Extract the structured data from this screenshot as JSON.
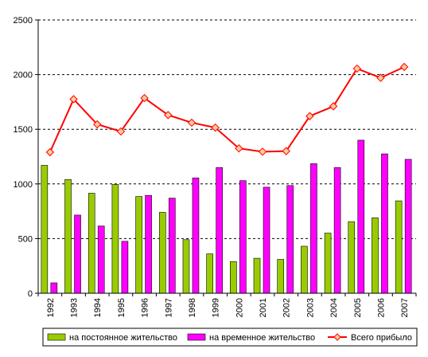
{
  "chart_data": {
    "type": "bar",
    "categories": [
      "1992",
      "1993",
      "1994",
      "1995",
      "1996",
      "1997",
      "1998",
      "1999",
      "2000",
      "2001",
      "2002",
      "2003",
      "2004",
      "2005",
      "2006",
      "2007"
    ],
    "ylim": [
      0,
      2500
    ],
    "yticks": [
      "0",
      "500",
      "1000",
      "1500",
      "2000",
      "2500"
    ],
    "grid": true,
    "legend_position": "bottom",
    "series": [
      {
        "name": "на постоянное жительство",
        "type": "bar",
        "color": "#99cc00",
        "values": [
          1170,
          1040,
          915,
          995,
          885,
          740,
          490,
          360,
          290,
          320,
          310,
          430,
          550,
          655,
          690,
          845
        ]
      },
      {
        "name": "на временное жительство",
        "type": "bar",
        "color": "#ff00ff",
        "values": [
          95,
          715,
          615,
          475,
          895,
          870,
          1055,
          1150,
          1030,
          970,
          985,
          1185,
          1150,
          1400,
          1275,
          1225
        ]
      },
      {
        "name": "Всего прибыло",
        "type": "line",
        "color": "#ff0000",
        "marker_fill": "#ffcc99",
        "values": [
          1290,
          1775,
          1545,
          1480,
          1785,
          1630,
          1560,
          1515,
          1325,
          1295,
          1300,
          1620,
          1710,
          2055,
          1970,
          2070
        ]
      }
    ]
  }
}
